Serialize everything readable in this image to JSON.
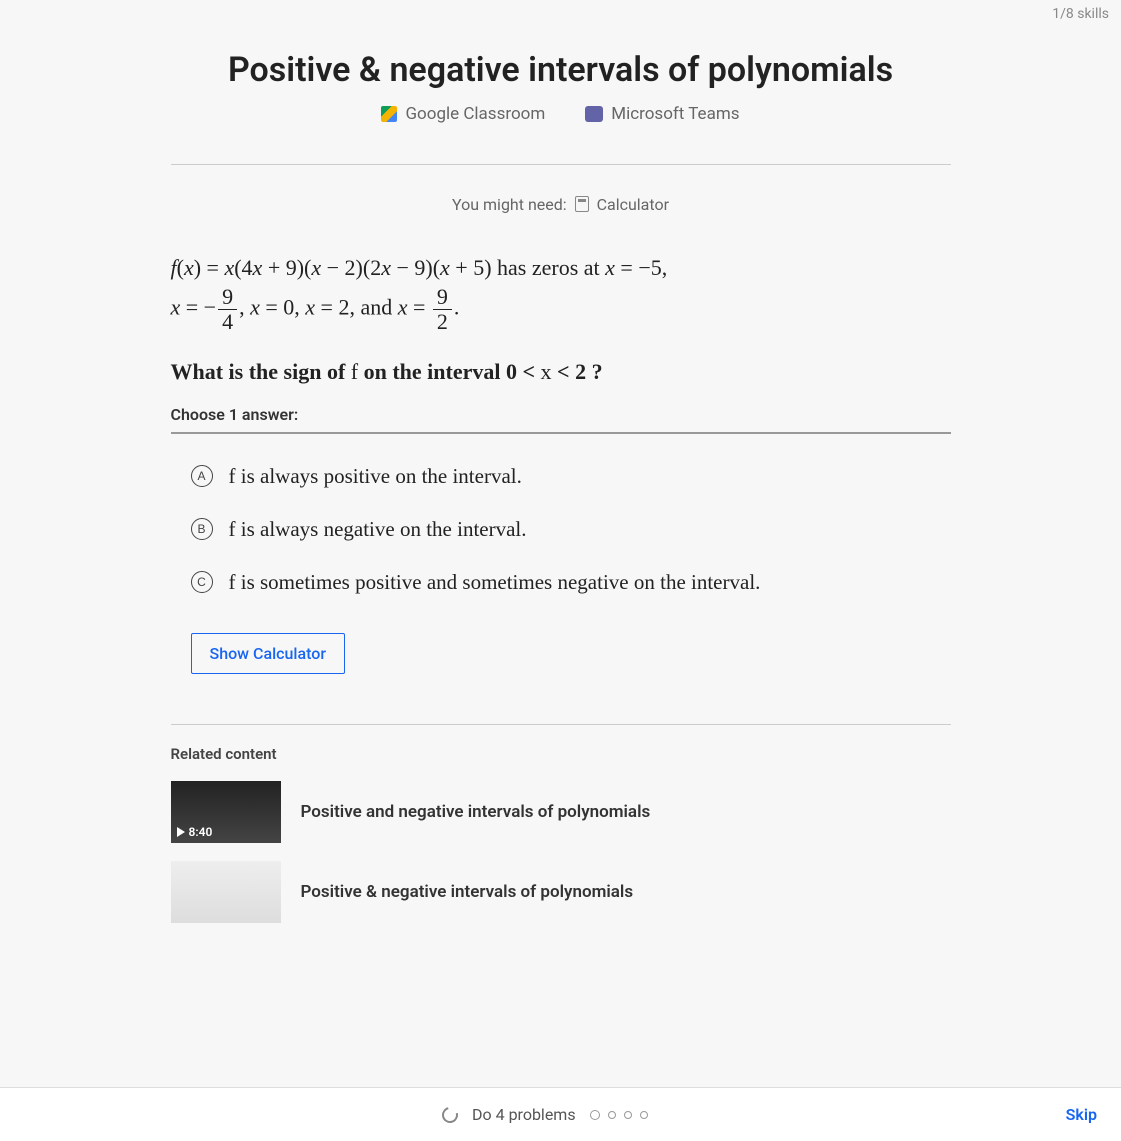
{
  "skills_counter": "1/8 skills",
  "title": "Positive & negative intervals of polynomials",
  "share": {
    "google": "Google Classroom",
    "teams": "Microsoft Teams"
  },
  "might_need": {
    "prefix": "You might need:",
    "tool": "Calculator"
  },
  "problem": {
    "line1_html": "<span class='it'>f</span>(<span class='it'>x</span>) = <span class='it'>x</span>(4<span class='it'>x</span> + 9)(<span class='it'>x</span> − 2)(2<span class='it'>x</span> − 9)(<span class='it'>x</span> + 5) has zeros at <span class='it'>x</span> = −5,",
    "line2_html": "<span class='it'>x</span> = −<span class='frac'><span class='num'>9</span><span class='den'>4</span></span>, <span class='it'>x</span> = 0, <span class='it'>x</span> = 2, and <span class='it'>x</span> = <span class='frac'><span class='num'>9</span><span class='den'>2</span></span>."
  },
  "question_html": "What is the sign of <span class='it' style='font-weight:normal'>f</span> on the interval 0 &lt; <span class='it' style='font-weight:normal'>x</span> &lt; 2 ?",
  "choose": "Choose 1 answer:",
  "answers": [
    {
      "letter": "A",
      "html": "<span class='it'>f</span> is always positive on the interval."
    },
    {
      "letter": "B",
      "html": "<span class='it'>f</span> is always negative on the interval."
    },
    {
      "letter": "C",
      "html": "<span class='it'>f</span> is sometimes positive and sometimes negative on the interval."
    }
  ],
  "show_calculator": "Show Calculator",
  "related": {
    "heading": "Related content",
    "items": [
      {
        "duration": "8:40",
        "title": "Positive and negative intervals of polynomials",
        "thumb": "dark"
      },
      {
        "duration": "",
        "title": "Positive & negative intervals of polynomials",
        "thumb": "light"
      }
    ]
  },
  "footer": {
    "do_problems": "Do 4 problems",
    "skip": "Skip"
  }
}
